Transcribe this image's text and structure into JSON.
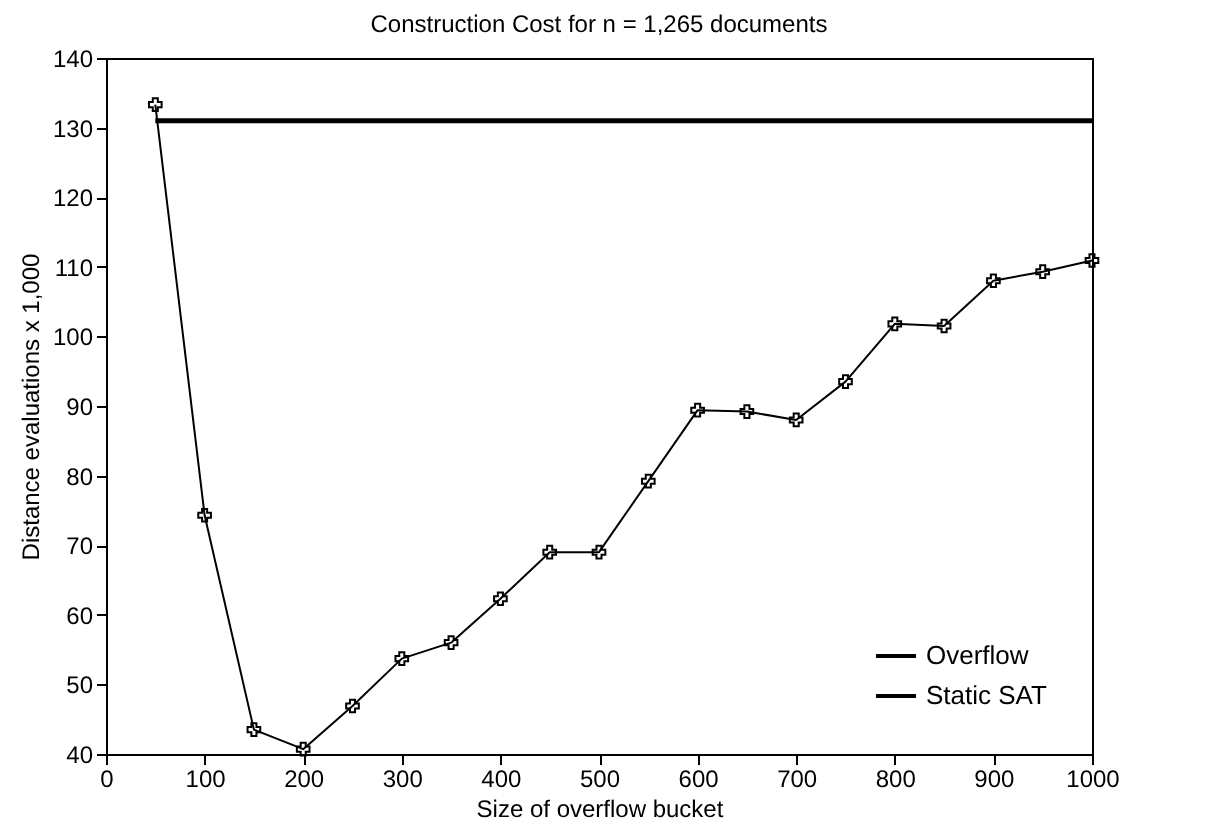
{
  "chart_data": {
    "type": "line",
    "title": "Construction Cost for n = 1,265 documents",
    "xlabel": "Size of overflow bucket",
    "ylabel": "Distance evaluations x 1,000",
    "xlim": [
      0,
      1000
    ],
    "xticks": [
      0,
      100,
      200,
      300,
      400,
      500,
      600,
      700,
      800,
      900,
      1000
    ],
    "ylim": [
      40,
      140
    ],
    "yticks": [
      40,
      50,
      60,
      70,
      80,
      90,
      100,
      110,
      120,
      130,
      140
    ],
    "legend": "bottom right",
    "grid": false,
    "series": [
      {
        "name": "Overflow",
        "color": "#000000",
        "marker": "cross",
        "x": [
          50,
          100,
          150,
          200,
          250,
          300,
          350,
          400,
          450,
          500,
          550,
          600,
          650,
          700,
          750,
          800,
          850,
          900,
          950,
          1000
        ],
        "values": [
          133.3,
          74.3,
          43.5,
          40.7,
          46.9,
          53.7,
          56,
          62.3,
          69,
          69,
          79.2,
          89.4,
          89.2,
          88,
          93.5,
          101.8,
          101.5,
          108,
          109.3,
          110.9
        ]
      },
      {
        "name": "Static SAT",
        "color": "#000000",
        "marker": "none",
        "x": [
          50,
          1000
        ],
        "values": [
          131,
          131
        ]
      }
    ]
  }
}
